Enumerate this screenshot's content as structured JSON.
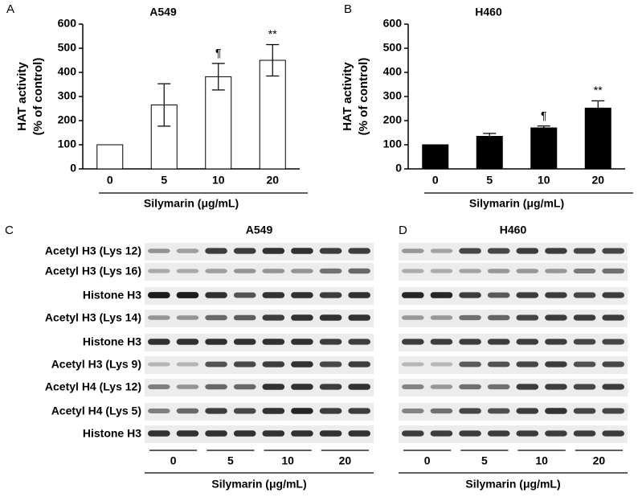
{
  "chart_data": [
    {
      "type": "bar",
      "panel": "A",
      "title": "A549",
      "ylabel": [
        "HAT activity",
        "(% of control)"
      ],
      "xlabel": "Silymarin (μg/mL)",
      "categories": [
        "0",
        "5",
        "10",
        "20"
      ],
      "values": [
        100,
        265,
        382,
        450
      ],
      "errors": [
        0,
        88,
        55,
        65
      ],
      "bar_marks": [
        null,
        null,
        "¶",
        "**"
      ],
      "color": "#ffffff",
      "ylim": [
        0,
        600
      ],
      "yticks": [
        0,
        100,
        200,
        300,
        400,
        500,
        600
      ]
    },
    {
      "type": "bar",
      "panel": "B",
      "title": "H460",
      "ylabel": [
        "HAT activity",
        "(% of control)"
      ],
      "xlabel": "Silymarin (μg/mL)",
      "categories": [
        "0",
        "5",
        "10",
        "20"
      ],
      "values": [
        100,
        135,
        170,
        252
      ],
      "errors": [
        0,
        12,
        8,
        30
      ],
      "bar_marks": [
        null,
        null,
        "¶",
        "**"
      ],
      "color": "#000000",
      "ylim": [
        0,
        600
      ],
      "yticks": [
        0,
        100,
        200,
        300,
        400,
        500,
        600
      ]
    }
  ],
  "blots": [
    {
      "panel": "C",
      "title": "A549",
      "rows": [
        "Acetyl H3 (Lys 12)",
        "Acetyl H3 (Lys 16)",
        "Histone H3",
        "Acetyl H3 (Lys 14)",
        "Histone H3",
        "Acetyl H3 (Lys 9)",
        "Acetyl H4 (Lys 12)",
        "Acetyl H4 (Lys 5)",
        "Histone H3"
      ],
      "doses": [
        "0",
        "5",
        "10",
        "20"
      ],
      "xlabel": "Silymarin (μg/mL)"
    },
    {
      "panel": "D",
      "title": "H460",
      "doses": [
        "0",
        "5",
        "10",
        "20"
      ],
      "xlabel": "Silymarin (μg/mL)"
    }
  ]
}
